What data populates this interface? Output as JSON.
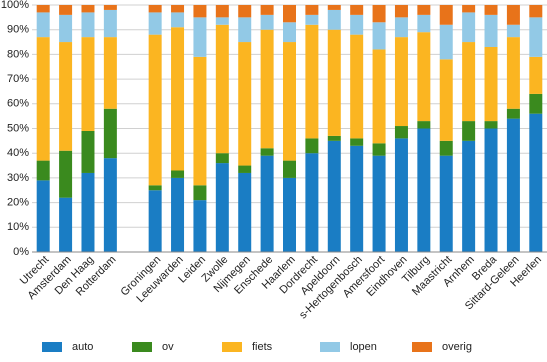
{
  "chart_data": {
    "type": "stacked-bar",
    "categories": [
      "Utrecht",
      "Amsterdam",
      "Den Haag",
      "Rotterdam",
      null,
      "Groningen",
      "Leeuwarden",
      "Leiden",
      "Zwolle",
      "Nijmegen",
      "Enschede",
      "Haarlem",
      "Dordrecht",
      "Apeldoorn",
      "s-Hertogenbosch",
      "Amersfoort",
      "Eindhoven",
      "Tilburg",
      "Maastricht",
      "Arnhem",
      "Breda",
      "Sittard-Geleen",
      "Heerlen"
    ],
    "series": [
      {
        "name": "auto",
        "color": "#1a7dc4",
        "values": [
          29,
          22,
          32,
          38,
          null,
          25,
          30,
          21,
          36,
          32,
          39,
          30,
          40,
          45,
          43,
          39,
          46,
          50,
          39,
          45,
          50,
          54,
          56
        ]
      },
      {
        "name": "ov",
        "color": "#3a8a1e",
        "values": [
          8,
          19,
          17,
          20,
          null,
          2,
          3,
          6,
          4,
          3,
          3,
          7,
          6,
          2,
          3,
          5,
          5,
          3,
          6,
          8,
          3,
          4,
          8
        ]
      },
      {
        "name": "fiets",
        "color": "#fbb521",
        "values": [
          50,
          44,
          38,
          29,
          null,
          61,
          58,
          52,
          52,
          50,
          48,
          48,
          46,
          43,
          42,
          38,
          36,
          36,
          33,
          32,
          30,
          29,
          15
        ]
      },
      {
        "name": "lopen",
        "color": "#92c9e6",
        "values": [
          10,
          11,
          10,
          11,
          null,
          9,
          6,
          16,
          3,
          10,
          6,
          8,
          4,
          8,
          8,
          11,
          8,
          7,
          14,
          12,
          13,
          5,
          16
        ]
      },
      {
        "name": "overig",
        "color": "#e8731a",
        "values": [
          3,
          4,
          3,
          2,
          null,
          3,
          3,
          5,
          5,
          5,
          4,
          7,
          4,
          2,
          4,
          7,
          5,
          4,
          8,
          3,
          4,
          8,
          5
        ]
      }
    ],
    "ylim": [
      0,
      100
    ],
    "yticks": [
      {
        "value": 0,
        "label": "0%"
      },
      {
        "value": 10,
        "label": "10%"
      },
      {
        "value": 20,
        "label": "20%"
      },
      {
        "value": 30,
        "label": "30%"
      },
      {
        "value": 40,
        "label": "40%"
      },
      {
        "value": 50,
        "label": "50%"
      },
      {
        "value": 60,
        "label": "60%"
      },
      {
        "value": 70,
        "label": "70%"
      },
      {
        "value": 80,
        "label": "80%"
      },
      {
        "value": 90,
        "label": "90%"
      },
      {
        "value": 100,
        "label": "100%"
      }
    ],
    "grid": true,
    "legend": "bottom"
  }
}
